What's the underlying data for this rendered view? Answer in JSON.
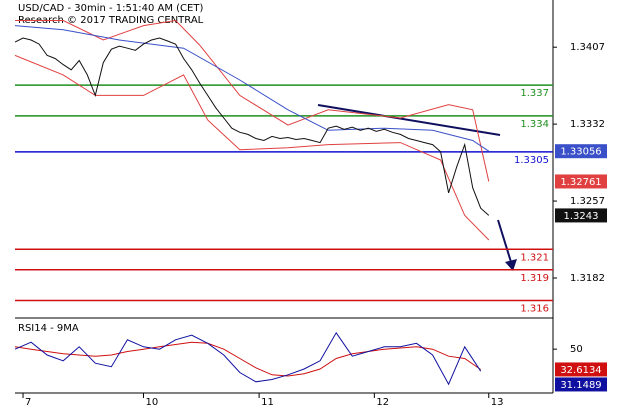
{
  "chart_data": [
    {
      "type": "line",
      "title": "USD/CAD - 30min - 1:51:40 AM (CET)",
      "subtitle": "Research © 2017 TRADING CENTRAL",
      "xlim": [
        0,
        67
      ],
      "ylim": [
        1.3143,
        1.3453
      ],
      "xticks": [
        {
          "value": 1,
          "label": "7"
        },
        {
          "value": 16,
          "label": "10"
        },
        {
          "value": 30.4,
          "label": "11"
        },
        {
          "value": 44.75,
          "label": "12"
        },
        {
          "value": 59,
          "label": "13"
        }
      ],
      "yticks": [
        1.3182,
        1.3257,
        1.3332,
        1.3407
      ],
      "x": [
        0,
        1,
        2,
        3,
        4,
        5,
        6,
        7,
        8,
        9,
        10,
        11,
        12,
        13,
        14,
        15,
        16,
        17,
        18,
        19,
        20,
        21,
        22,
        23,
        24,
        25,
        26,
        27,
        28,
        29,
        30,
        31,
        32,
        33,
        34,
        35,
        36,
        37,
        38,
        39,
        40,
        41,
        42,
        43,
        44,
        45,
        46,
        47,
        48,
        49,
        50,
        51,
        52,
        53,
        54,
        55,
        56,
        57,
        58,
        59
      ],
      "levels": [
        {
          "value": 1.337,
          "color": "#1f8f1f"
        },
        {
          "value": 1.334,
          "color": "#1f8f1f"
        },
        {
          "value": 1.3305,
          "color": "#1010d0"
        },
        {
          "value": 1.321,
          "color": "#d01010"
        },
        {
          "value": 1.319,
          "color": "#d01010"
        },
        {
          "value": 1.316,
          "color": "#d01010"
        }
      ],
      "series": [
        {
          "color": "#e04040",
          "label_last": true,
          "x": [
            0,
            6,
            11,
            16,
            20,
            23,
            28,
            34,
            39,
            48,
            54,
            57,
            59
          ],
          "values": [
            1.3433,
            1.3433,
            1.3414,
            1.3428,
            1.3433,
            1.3409,
            1.336,
            1.3331,
            1.3346,
            1.3338,
            1.3351,
            1.3346,
            1.32761
          ]
        },
        {
          "color": "#e04040",
          "x": [
            0,
            6,
            10,
            16,
            21,
            24,
            28,
            34,
            39,
            48,
            53,
            56,
            59
          ],
          "values": [
            1.3399,
            1.338,
            1.336,
            1.336,
            1.338,
            1.3336,
            1.3307,
            1.3309,
            1.3312,
            1.3314,
            1.3297,
            1.3243,
            1.3219
          ]
        },
        {
          "color": "#3a50c8",
          "label_last": true,
          "x": [
            0,
            6,
            13,
            21,
            28,
            34,
            39,
            46,
            52,
            57,
            59
          ],
          "values": [
            1.3428,
            1.3424,
            1.3414,
            1.3406,
            1.3375,
            1.3346,
            1.3326,
            1.3328,
            1.3326,
            1.3316,
            1.33056
          ]
        },
        {
          "color": "#111111",
          "label_last": true,
          "values": [
            1.3412,
            1.3416,
            1.3414,
            1.341,
            1.3399,
            1.3396,
            1.339,
            1.3385,
            1.3394,
            1.338,
            1.336,
            1.3392,
            1.3405,
            1.3408,
            1.3406,
            1.3404,
            1.341,
            1.3414,
            1.3416,
            1.3413,
            1.341,
            1.3396,
            1.3385,
            1.3372,
            1.336,
            1.3348,
            1.3338,
            1.3328,
            1.3324,
            1.3322,
            1.3318,
            1.3316,
            1.332,
            1.3318,
            1.3319,
            1.3317,
            1.3318,
            1.3316,
            1.3314,
            1.3328,
            1.333,
            1.3327,
            1.3329,
            1.3326,
            1.3328,
            1.3325,
            1.3327,
            1.3324,
            1.3322,
            1.3318,
            1.3316,
            1.3314,
            1.3312,
            1.3305,
            1.3265,
            1.329,
            1.3312,
            1.327,
            1.325,
            1.3243
          ]
        }
      ]
    },
    {
      "type": "line",
      "title": "RSI14 - 9MA",
      "xlim": [
        0,
        67
      ],
      "ylim": [
        15,
        75
      ],
      "yticks": [
        50
      ],
      "x": [
        0,
        2,
        4,
        6,
        8,
        10,
        12,
        14,
        16,
        18,
        20,
        22,
        24,
        26,
        28,
        30,
        32,
        34,
        36,
        38,
        40,
        42,
        44,
        46,
        48,
        50,
        52,
        54,
        56,
        58
      ],
      "series": [
        {
          "color": "#d01010",
          "label_last": true,
          "values": [
            52,
            50,
            48,
            46,
            45,
            44,
            45,
            48,
            50,
            52,
            54,
            56,
            55,
            50,
            42,
            34,
            28,
            27,
            29,
            33,
            42,
            46,
            48,
            50,
            51,
            52,
            50,
            44,
            42,
            32.6134
          ]
        },
        {
          "color": "#1010a0",
          "label_last": true,
          "values": [
            50,
            56,
            45,
            40,
            52,
            38,
            35,
            58,
            52,
            50,
            58,
            62,
            55,
            45,
            30,
            22,
            24,
            28,
            33,
            40,
            64,
            44,
            48,
            52,
            52,
            55,
            45,
            20,
            52,
            31.1489
          ]
        }
      ]
    }
  ]
}
